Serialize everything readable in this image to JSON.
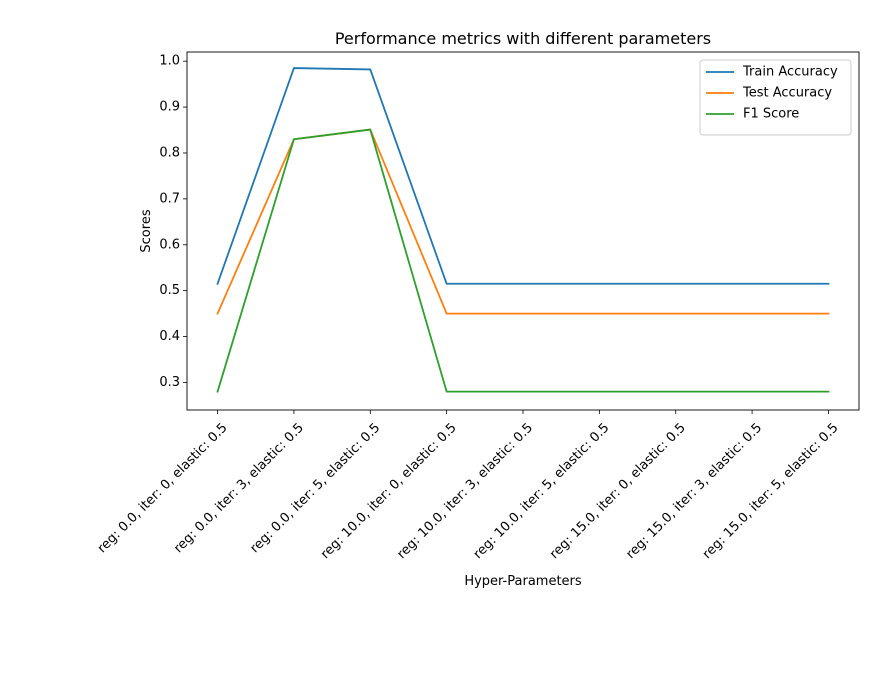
{
  "chart_data": {
    "type": "line",
    "title": "Performance metrics with different parameters",
    "xlabel": "Hyper-Parameters",
    "ylabel": "Scores",
    "categories": [
      "reg: 0.0, iter: 0, elastic: 0.5",
      "reg: 0.0, iter: 3, elastic: 0.5",
      "reg: 0.0, iter: 5, elastic: 0.5",
      "reg: 10.0, iter: 0, elastic: 0.5",
      "reg: 10.0, iter: 3, elastic: 0.5",
      "reg: 10.0, iter: 5, elastic: 0.5",
      "reg: 15.0, iter: 0, elastic: 0.5",
      "reg: 15.0, iter: 3, elastic: 0.5",
      "reg: 15.0, iter: 5, elastic: 0.5"
    ],
    "ylim": [
      0.24,
      1.02
    ],
    "yticks": [
      0.3,
      0.4,
      0.5,
      0.6,
      0.7,
      0.8,
      0.9,
      1.0
    ],
    "ytick_labels": [
      "0.3",
      "0.4",
      "0.5",
      "0.6",
      "0.7",
      "0.8",
      "0.9",
      "1.0"
    ],
    "grid": false,
    "legend_position": "top-right",
    "series": [
      {
        "name": "Train Accuracy",
        "color": "#1f77b4",
        "values": [
          0.515,
          0.985,
          0.982,
          0.515,
          0.515,
          0.515,
          0.515,
          0.515,
          0.515
        ]
      },
      {
        "name": "Test Accuracy",
        "color": "#ff7f0e",
        "values": [
          0.45,
          0.83,
          0.851,
          0.45,
          0.45,
          0.45,
          0.45,
          0.45,
          0.45
        ]
      },
      {
        "name": "F1 Score",
        "color": "#2ca02c",
        "values": [
          0.28,
          0.83,
          0.851,
          0.28,
          0.28,
          0.28,
          0.28,
          0.28,
          0.28
        ]
      }
    ]
  }
}
